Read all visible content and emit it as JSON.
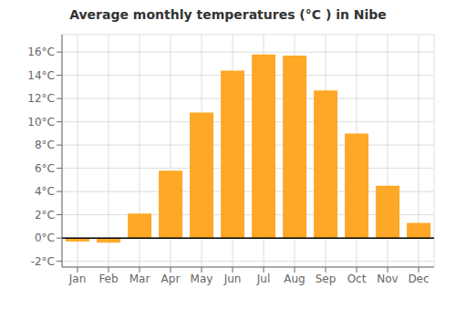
{
  "chart_data": {
    "type": "bar",
    "title": "Average monthly temperatures (°C ) in Nibe",
    "categories": [
      "Jan",
      "Feb",
      "Mar",
      "Apr",
      "May",
      "Jun",
      "Jul",
      "Aug",
      "Sep",
      "Oct",
      "Nov",
      "Dec"
    ],
    "values": [
      -0.3,
      -0.4,
      2.1,
      5.8,
      10.8,
      14.4,
      15.8,
      15.7,
      12.7,
      9.0,
      4.5,
      1.3
    ],
    "color": "#FFA726",
    "ylim": [
      -2.5,
      17.5
    ],
    "yticks": [
      {
        "value": -2,
        "label": "-2°C"
      },
      {
        "value": 0,
        "label": "0°C"
      },
      {
        "value": 2,
        "label": "2°C"
      },
      {
        "value": 4,
        "label": "4°C"
      },
      {
        "value": 6,
        "label": "6°C"
      },
      {
        "value": 8,
        "label": "8°C"
      },
      {
        "value": 10,
        "label": "10°C"
      },
      {
        "value": 12,
        "label": "12°C"
      },
      {
        "value": 14,
        "label": "14°C"
      },
      {
        "value": 16,
        "label": "16°C"
      }
    ],
    "grid": true
  }
}
